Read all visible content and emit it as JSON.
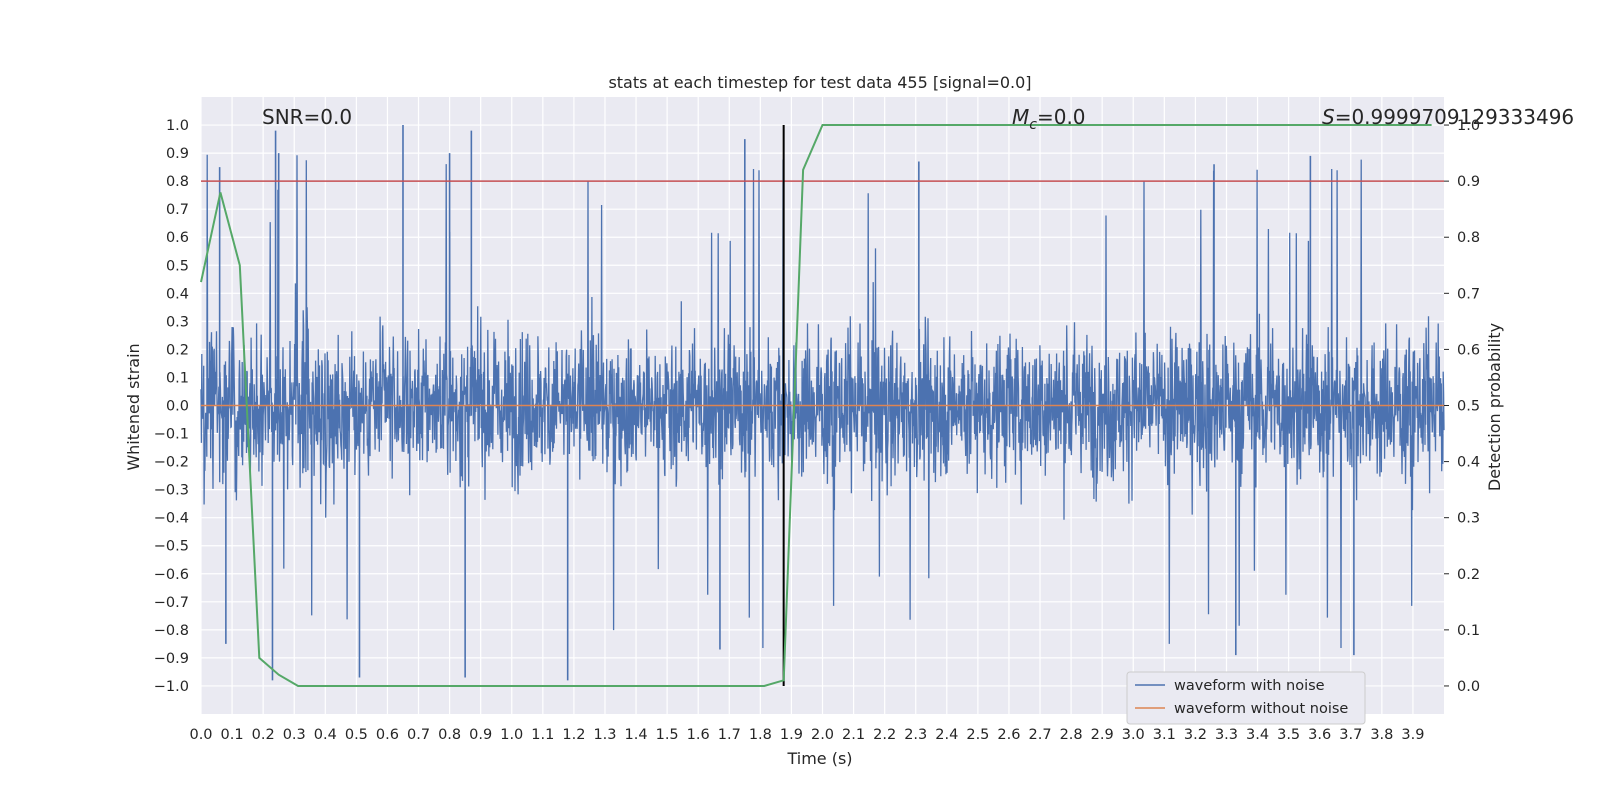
{
  "chart_data": {
    "type": "line",
    "title": "stats at each timestep for test data 455 [signal=0.0]",
    "xlabel": "Time (s)",
    "ylabel": "Whitened strain",
    "y2label": "Detection probability",
    "xlim": [
      0.0,
      4.0
    ],
    "ylim": [
      -1.1,
      1.1
    ],
    "y2lim": [
      -0.05,
      1.05
    ],
    "grid": true,
    "xticks": [
      "0.0",
      "0.1",
      "0.2",
      "0.3",
      "0.4",
      "0.5",
      "0.6",
      "0.7",
      "0.8",
      "0.9",
      "1.0",
      "1.1",
      "1.2",
      "1.3",
      "1.4",
      "1.5",
      "1.6",
      "1.7",
      "1.8",
      "1.9",
      "2.0",
      "2.1",
      "2.2",
      "2.3",
      "2.4",
      "2.5",
      "2.6",
      "2.7",
      "2.8",
      "2.9",
      "3.0",
      "3.1",
      "3.2",
      "3.3",
      "3.4",
      "3.5",
      "3.6",
      "3.7",
      "3.8",
      "3.9"
    ],
    "yticks": [
      "1.0",
      "0.9",
      "0.8",
      "0.7",
      "0.6",
      "0.5",
      "0.4",
      "0.3",
      "0.2",
      "0.1",
      "0.0",
      "−0.1",
      "−0.2",
      "−0.3",
      "−0.4",
      "−0.5",
      "−0.6",
      "−0.7",
      "−0.8",
      "−0.9",
      "−1.0"
    ],
    "y2ticks": [
      "1.0",
      "0.9",
      "0.8",
      "0.7",
      "0.6",
      "0.5",
      "0.4",
      "0.3",
      "0.2",
      "0.1",
      "0.0"
    ],
    "annotations": {
      "snr": "SNR=0.0",
      "mc_symbol": "M",
      "mc_sub": "c",
      "mc_value": "=0.0",
      "s_symbol": "S",
      "s_value": "=0.9999709129333496"
    },
    "threshold_line": {
      "y2": 0.9,
      "color": "#c44e52"
    },
    "marker_line": {
      "x": 1.875,
      "color": "#000000"
    },
    "series": [
      {
        "name": "waveform with noise",
        "color": "#4c72b0",
        "axis": "left",
        "description": "noise-like whitened strain, amplitude envelope ~±0.4, peaks up to ±1.0",
        "sample_rate_hz": 2048,
        "peaks": [
          {
            "x": 0.06,
            "y": 0.85
          },
          {
            "x": 0.24,
            "y": 0.98
          },
          {
            "x": 0.25,
            "y": 0.9
          },
          {
            "x": 0.65,
            "y": 1.0
          },
          {
            "x": 0.87,
            "y": 0.98
          },
          {
            "x": 0.8,
            "y": 0.9
          },
          {
            "x": 1.75,
            "y": 0.95
          },
          {
            "x": 2.31,
            "y": 0.87
          },
          {
            "x": 3.26,
            "y": 0.86
          },
          {
            "x": 3.57,
            "y": 0.89
          },
          {
            "x": 0.08,
            "y": -0.85
          },
          {
            "x": 0.23,
            "y": -0.98
          },
          {
            "x": 0.51,
            "y": -0.97
          },
          {
            "x": 0.85,
            "y": -0.97
          },
          {
            "x": 1.18,
            "y": -0.98
          },
          {
            "x": 3.33,
            "y": -0.89
          },
          {
            "x": 1.67,
            "y": -0.87
          },
          {
            "x": 3.71,
            "y": -0.89
          }
        ]
      },
      {
        "name": "waveform without noise",
        "color": "#dd8452",
        "axis": "left",
        "x": [
          0.0,
          4.0
        ],
        "y": [
          0.0,
          0.0
        ]
      },
      {
        "name": "detection probability",
        "color": "#55a868",
        "axis": "right",
        "in_legend": false,
        "x": [
          0.0,
          0.0625,
          0.125,
          0.1875,
          0.25,
          0.3125,
          1.5,
          1.8125,
          1.875,
          1.9375,
          2.0,
          2.5,
          3.0,
          3.5,
          3.96
        ],
        "y": [
          0.72,
          0.88,
          0.75,
          0.05,
          0.02,
          0.0,
          0.0,
          0.0,
          0.01,
          0.92,
          1.0,
          1.0,
          1.0,
          1.0,
          1.0
        ]
      }
    ],
    "legend": {
      "placement": "lower-right",
      "entries": [
        {
          "label": "waveform with noise",
          "color": "#4c72b0"
        },
        {
          "label": "waveform without noise",
          "color": "#dd8452"
        }
      ]
    },
    "style": {
      "plot_bg": "#eaeaf2",
      "grid_color": "#ffffff",
      "text_color": "#262626"
    }
  }
}
